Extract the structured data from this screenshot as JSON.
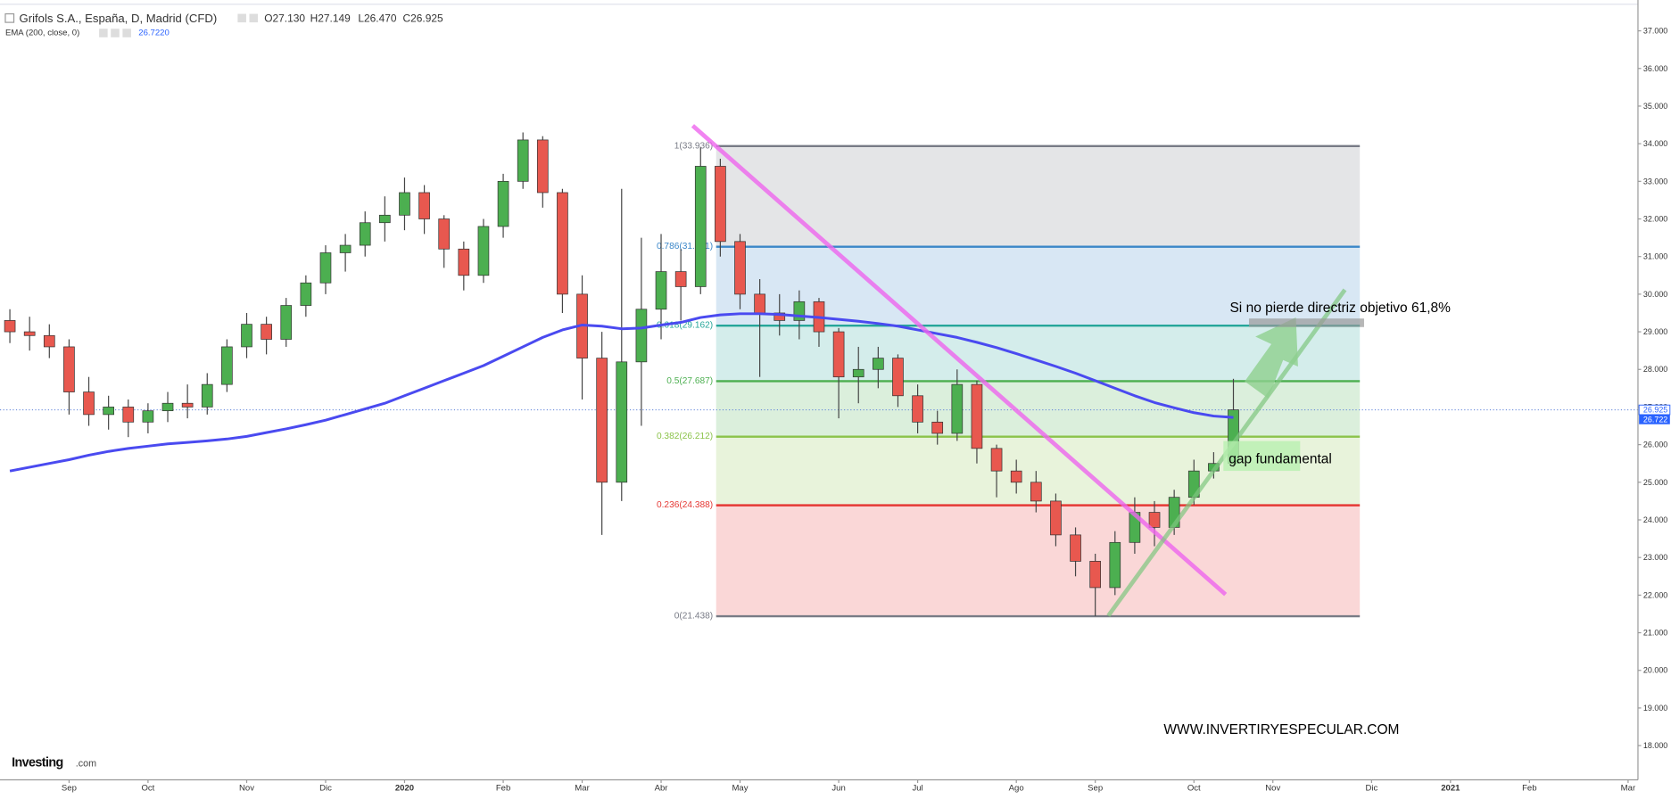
{
  "chart_data": {
    "type": "candlestick",
    "title": "Grifols S.A., España, D, Madrid (CFD)",
    "ohlc_legend": [
      "O27.130",
      "H27.149",
      "L26.470",
      "C26.925"
    ],
    "indicator": {
      "name": "EMA (200, close, 0)",
      "value_label": "26.7220"
    },
    "categories": [
      null,
      null,
      null,
      "Sep",
      null,
      null,
      null,
      "Oct",
      null,
      null,
      null,
      null,
      "Nov",
      null,
      null,
      null,
      "Dic",
      null,
      null,
      null,
      "2020",
      null,
      null,
      null,
      null,
      "Feb",
      null,
      null,
      null,
      "Mar",
      null,
      null,
      null,
      "Abr",
      null,
      null,
      null,
      "May",
      null,
      null,
      null,
      null,
      "Jun",
      null,
      null,
      null,
      "Jul",
      null,
      null,
      null,
      null,
      "Ago",
      null,
      null,
      null,
      "Sep",
      null,
      null,
      null,
      null,
      "Oct",
      null,
      null,
      null,
      "Nov",
      null,
      null,
      null,
      null,
      "Dic",
      null,
      null,
      null,
      "2021",
      null,
      null,
      null,
      "Feb",
      null,
      null,
      null,
      null,
      "Mar"
    ],
    "open": [
      29.3,
      29.0,
      28.9,
      28.6,
      27.4,
      26.8,
      27.0,
      26.6,
      26.9,
      27.1,
      27.0,
      27.6,
      28.6,
      29.2,
      28.8,
      29.7,
      30.3,
      31.1,
      31.3,
      31.9,
      32.1,
      32.7,
      32.0,
      31.2,
      30.5,
      31.8,
      33.0,
      34.1,
      32.7,
      30.0,
      28.3,
      25.0,
      28.2,
      29.6,
      30.6,
      30.2,
      33.4,
      31.4,
      30.0,
      29.5,
      29.3,
      29.8,
      29.0,
      27.8,
      28.0,
      28.3,
      27.3,
      26.6,
      26.3,
      27.6,
      25.9,
      25.3,
      25.0,
      24.5,
      23.6,
      22.9,
      22.2,
      23.4,
      24.2,
      23.8,
      24.6,
      25.3,
      25.5,
      null,
      null,
      null,
      null,
      null,
      null,
      null,
      null,
      null,
      null,
      null,
      null,
      null,
      null,
      null,
      null,
      null,
      null,
      null,
      null
    ],
    "high": [
      29.6,
      29.4,
      29.2,
      28.8,
      27.8,
      27.3,
      27.2,
      27.1,
      27.4,
      27.6,
      27.9,
      28.8,
      29.5,
      29.4,
      29.9,
      30.5,
      31.3,
      31.6,
      32.2,
      32.6,
      33.1,
      32.9,
      32.1,
      31.4,
      32.0,
      33.2,
      34.3,
      34.2,
      32.8,
      30.5,
      29.0,
      32.8,
      31.5,
      31.6,
      31.2,
      33.9,
      33.6,
      31.6,
      30.4,
      30.0,
      30.1,
      29.9,
      29.1,
      28.6,
      28.6,
      28.4,
      27.6,
      26.9,
      28.0,
      27.7,
      26.0,
      25.6,
      25.3,
      24.7,
      23.8,
      23.1,
      23.7,
      24.6,
      24.5,
      24.8,
      25.6,
      25.8,
      27.75,
      null,
      null,
      null,
      null,
      null,
      null,
      null,
      null,
      null,
      null,
      null,
      null,
      null,
      null,
      null,
      null,
      null,
      null,
      null,
      null
    ],
    "low": [
      28.7,
      28.5,
      28.3,
      26.8,
      26.5,
      26.4,
      26.2,
      26.3,
      26.6,
      26.7,
      26.8,
      27.4,
      28.3,
      28.4,
      28.6,
      29.4,
      30.0,
      30.6,
      31.0,
      31.4,
      31.7,
      31.6,
      30.7,
      30.1,
      30.3,
      31.5,
      32.8,
      32.3,
      29.5,
      27.2,
      23.6,
      24.5,
      26.5,
      28.8,
      29.3,
      30.0,
      31.0,
      29.6,
      27.8,
      28.9,
      28.8,
      28.6,
      26.7,
      27.1,
      27.5,
      27.0,
      26.3,
      26.0,
      26.1,
      25.5,
      24.6,
      24.7,
      24.2,
      23.3,
      22.5,
      21.44,
      22.0,
      23.1,
      23.3,
      23.6,
      24.4,
      25.1,
      25.4,
      null,
      null,
      null,
      null,
      null,
      null,
      null,
      null,
      null,
      null,
      null,
      null,
      null,
      null,
      null,
      null,
      null,
      null,
      null,
      null
    ],
    "close": [
      29.0,
      28.9,
      28.6,
      27.4,
      26.8,
      27.0,
      26.6,
      26.9,
      27.1,
      27.0,
      27.6,
      28.6,
      29.2,
      28.8,
      29.7,
      30.3,
      31.1,
      31.3,
      31.9,
      32.1,
      32.7,
      32.0,
      31.2,
      30.5,
      31.8,
      33.0,
      34.1,
      32.7,
      30.0,
      28.3,
      25.0,
      28.2,
      29.6,
      30.6,
      30.2,
      33.4,
      31.4,
      30.0,
      29.5,
      29.3,
      29.8,
      29.0,
      27.8,
      28.0,
      28.3,
      27.3,
      26.6,
      26.3,
      27.6,
      25.9,
      25.3,
      25.0,
      24.5,
      23.6,
      22.9,
      22.2,
      23.4,
      24.2,
      23.8,
      24.6,
      25.3,
      25.5,
      26.925,
      null,
      null,
      null,
      null,
      null,
      null,
      null,
      null,
      null,
      null,
      null,
      null,
      null,
      null,
      null,
      null,
      null,
      null,
      null,
      null
    ],
    "up_color": "#4caf50",
    "down_color": "#e8584f",
    "ema": {
      "color": "#4a4af0",
      "values": [
        25.3,
        25.4,
        25.5,
        25.6,
        25.72,
        25.82,
        25.9,
        25.96,
        26.02,
        26.06,
        26.1,
        26.15,
        26.22,
        26.32,
        26.42,
        26.53,
        26.65,
        26.8,
        26.95,
        27.1,
        27.3,
        27.5,
        27.7,
        27.9,
        28.1,
        28.35,
        28.6,
        28.85,
        29.05,
        29.18,
        29.15,
        29.08,
        29.1,
        29.18,
        29.25,
        29.38,
        29.45,
        29.48,
        29.48,
        29.46,
        29.42,
        29.38,
        29.33,
        29.28,
        29.22,
        29.15,
        29.05,
        28.95,
        28.85,
        28.72,
        28.58,
        28.42,
        28.25,
        28.08,
        27.9,
        27.7,
        27.5,
        27.3,
        27.12,
        26.98,
        26.85,
        26.76,
        26.722,
        null,
        null,
        null,
        null,
        null,
        null,
        null,
        null,
        null,
        null,
        null,
        null,
        null,
        null,
        null,
        null,
        null,
        null,
        null,
        null
      ]
    },
    "last_price": {
      "value": 26.925,
      "label": "26.925"
    },
    "ema_last": {
      "value": 26.722,
      "label": "26.722"
    },
    "fib": {
      "levels": [
        {
          "value": 33.936,
          "label": "1(33.936)",
          "color": "#787b86"
        },
        {
          "value": 31.261,
          "label": "0.786(31.261)",
          "color": "#3a86c8"
        },
        {
          "value": 29.162,
          "label": "0.618(29.162)",
          "color": "#26a69a"
        },
        {
          "value": 27.687,
          "label": "0.5(27.687)",
          "color": "#4caf50"
        },
        {
          "value": 26.212,
          "label": "0.382(26.212)",
          "color": "#8bc34a"
        },
        {
          "value": 24.388,
          "label": "0.236(24.388)",
          "color": "#e53935"
        },
        {
          "value": 21.438,
          "label": "0(21.438)",
          "color": "#787b86"
        }
      ]
    },
    "ylim": [
      17.09,
      37.82
    ],
    "yticks": [
      {
        "value": 18,
        "label": "18.000"
      },
      {
        "value": 19,
        "label": "19.000"
      },
      {
        "value": 20,
        "label": "20.000"
      },
      {
        "value": 21,
        "label": "21.000"
      },
      {
        "value": 22,
        "label": "22.000"
      },
      {
        "value": 23,
        "label": "23.000"
      },
      {
        "value": 24,
        "label": "24.000"
      },
      {
        "value": 25,
        "label": "25.000"
      },
      {
        "value": 26,
        "label": "26.000"
      },
      {
        "value": 27,
        "label": "27.000"
      },
      {
        "value": 28,
        "label": "28.000"
      },
      {
        "value": 29,
        "label": "29.000"
      },
      {
        "value": 30,
        "label": "30.000"
      },
      {
        "value": 31,
        "label": "31.000"
      },
      {
        "value": 32,
        "label": "32.000"
      },
      {
        "value": 33,
        "label": "33.000"
      },
      {
        "value": 34,
        "label": "34.000"
      },
      {
        "value": 35,
        "label": "35.000"
      },
      {
        "value": 36,
        "label": "36.000"
      },
      {
        "value": 37,
        "label": "37.000"
      }
    ],
    "annotations": [
      "Si no pierde directriz objetivo 61,8%",
      "gap fundamental"
    ],
    "watermark": "WWW.INVERTIRYESPECULAR.COM",
    "brand": "Investing",
    "brand_suffix": ".com"
  }
}
